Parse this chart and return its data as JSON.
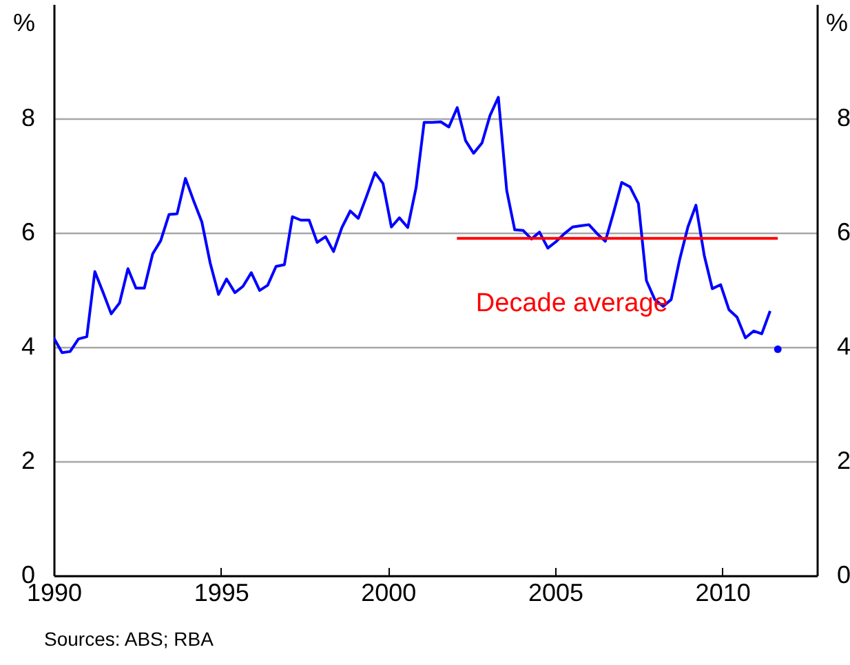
{
  "chart_data": {
    "type": "line",
    "ylabel": "%",
    "y2label": "%",
    "xlim": [
      1990,
      2012.83
    ],
    "xticks": [
      1990,
      1995,
      2000,
      2005,
      2010
    ],
    "ylim": [
      0,
      10
    ],
    "yticks": [
      0,
      2,
      4,
      6,
      8
    ],
    "y2lim": [
      0,
      10
    ],
    "y2ticks": [
      0,
      2,
      4,
      6,
      8
    ],
    "grid": "y",
    "series": [
      {
        "color": "#0000ff",
        "x": [
          1990.0,
          1990.25,
          1990.49,
          1990.74,
          1990.99,
          1991.23,
          1991.48,
          1991.72,
          1991.97,
          1992.22,
          1992.46,
          1992.71,
          1992.96,
          1993.2,
          1993.45,
          1993.69,
          1993.94,
          1994.19,
          1994.43,
          1994.68,
          1994.93,
          1995.17,
          1995.42,
          1995.66,
          1995.91,
          1996.16,
          1996.4,
          1996.65,
          1996.9,
          1997.14,
          1997.39,
          1997.64,
          1997.88,
          1998.13,
          1998.37,
          1998.62,
          1998.87,
          1999.11,
          1999.36,
          1999.61,
          1999.85,
          2000.1,
          2000.34,
          2000.59,
          2000.84,
          2001.08,
          2001.33,
          2001.58,
          2001.82,
          2002.07,
          2002.32,
          2002.56,
          2002.81,
          2003.05,
          2003.3,
          2003.55,
          2003.79,
          2004.04,
          2004.29,
          2004.53,
          2004.78,
          2005.02,
          2005.27,
          2005.52,
          2005.76,
          2006.01,
          2006.26,
          2006.5,
          2006.75,
          2006.99,
          2007.24,
          2007.49,
          2007.73,
          2007.98,
          2008.23,
          2008.47,
          2008.72,
          2008.97,
          2009.21,
          2009.46,
          2009.7,
          2009.95,
          2010.2,
          2010.44,
          2010.69,
          2010.94,
          2011.18,
          2011.43
        ],
        "values": [
          4.16,
          3.9,
          3.92,
          4.14,
          4.18,
          5.32,
          4.95,
          4.58,
          4.77,
          5.37,
          5.03,
          5.03,
          5.63,
          5.86,
          6.32,
          6.33,
          6.95,
          6.55,
          6.19,
          5.47,
          4.92,
          5.19,
          4.95,
          5.06,
          5.3,
          4.99,
          5.08,
          5.41,
          5.44,
          6.28,
          6.22,
          6.22,
          5.83,
          5.93,
          5.67,
          6.09,
          6.38,
          6.25,
          6.64,
          7.05,
          6.86,
          6.1,
          6.26,
          6.09,
          6.79,
          7.93,
          7.93,
          7.94,
          7.85,
          8.19,
          7.61,
          7.39,
          7.57,
          8.05,
          8.37,
          6.74,
          6.05,
          6.04,
          5.89,
          6.01,
          5.73,
          5.84,
          5.98,
          6.1,
          6.12,
          6.14,
          5.98,
          5.85,
          6.36,
          6.88,
          6.8,
          6.51,
          5.16,
          4.83,
          4.71,
          4.83,
          5.52,
          6.1,
          6.48,
          5.6,
          5.02,
          5.09,
          4.65,
          4.52,
          4.16,
          4.28,
          4.23,
          4.63
        ]
      },
      {
        "type": "scatter",
        "color": "#0000ff",
        "x": [
          2011.66
        ],
        "values": [
          3.96
        ]
      },
      {
        "type": "line",
        "color": "#ff0000",
        "x": [
          2002.06,
          2011.66
        ],
        "values": [
          5.9,
          5.9
        ]
      }
    ],
    "annotations": [
      {
        "text": "Decade average",
        "x": 2005.5,
        "y": 5.9
      },
      "Sources: ABS; RBA"
    ]
  }
}
